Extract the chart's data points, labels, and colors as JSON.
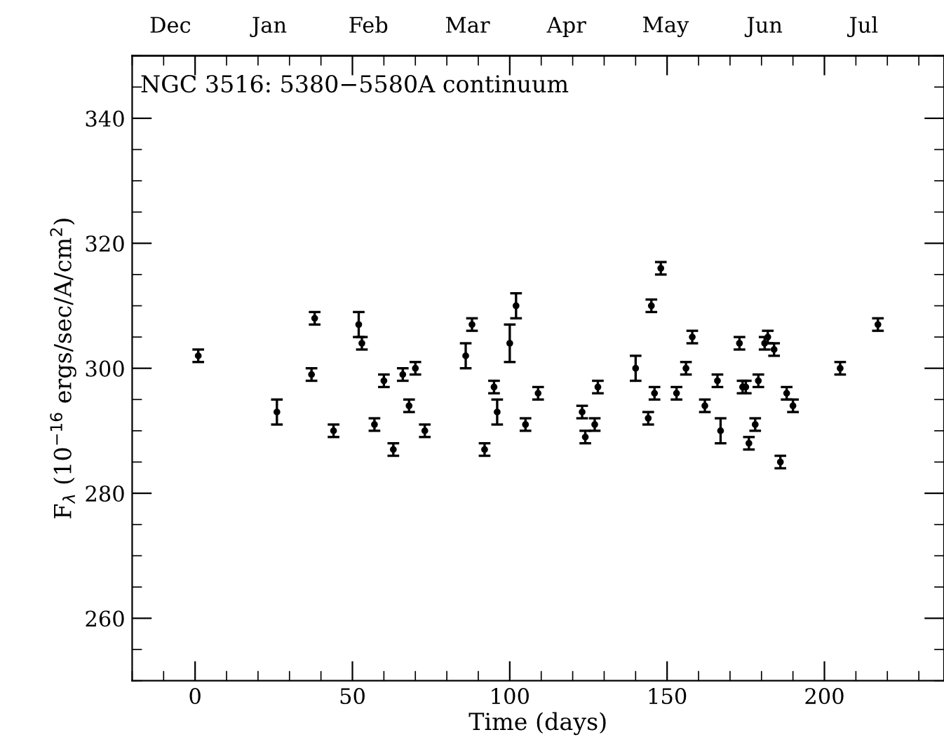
{
  "chart_data": {
    "type": "scatter",
    "title": "NGC 3516: 5380−5580A continuum",
    "xlabel": "Time (days)",
    "ylabel": "F$_{λ}$ (10$^{−16}$ ergs/sec/A/cm$^{2}$)",
    "x": [
      1,
      26,
      38,
      37,
      44,
      52,
      53,
      57,
      60,
      63,
      66,
      68,
      70,
      73,
      86,
      88,
      92,
      95,
      96,
      100,
      102,
      105,
      109,
      123,
      124,
      127,
      128,
      140,
      144,
      145,
      146,
      148,
      153,
      156,
      158,
      162,
      166,
      167,
      173,
      174,
      175,
      176,
      178,
      179,
      181,
      182,
      184,
      186,
      188,
      190,
      205,
      217
    ],
    "values": [
      302,
      293,
      308,
      299,
      290,
      307,
      304,
      291,
      298,
      287,
      299,
      294,
      300,
      290,
      302,
      307,
      287,
      297,
      293,
      304,
      310,
      291,
      296,
      293,
      289,
      291,
      297,
      300,
      292,
      310,
      296,
      316,
      296,
      300,
      305,
      294,
      298,
      290,
      304,
      297,
      297,
      288,
      291,
      298,
      304,
      305,
      303,
      285,
      296,
      294,
      300,
      307
    ],
    "errors": [
      1,
      2,
      1,
      1,
      1,
      2,
      1,
      1,
      1,
      1,
      1,
      1,
      1,
      1,
      2,
      1,
      1,
      1,
      2,
      3,
      2,
      1,
      1,
      1,
      1,
      1,
      1,
      2,
      1,
      1,
      1,
      1,
      1,
      1,
      1,
      1,
      1,
      2,
      1,
      1,
      1,
      1,
      1,
      1,
      1,
      1,
      1,
      1,
      1,
      1,
      1,
      1
    ],
    "color": "#000000",
    "marker": "circle",
    "xlim": [
      -20,
      238
    ],
    "xticks": [
      0,
      50,
      100,
      150,
      200
    ],
    "ylim": [
      250,
      350
    ],
    "yticks": [
      260,
      280,
      300,
      320,
      340
    ],
    "annotations": [
      "Dec",
      "Jan",
      "Feb",
      "Mar",
      "Apr",
      "May",
      "Jun",
      "Jul"
    ],
    "grid": false,
    "legend": false
  }
}
